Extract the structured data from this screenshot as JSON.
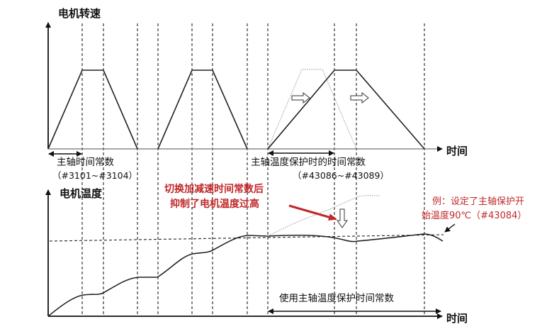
{
  "top_chart": {
    "ylabel": "电机转速",
    "xlabel": "时间",
    "normal_time_label": "主轴时间常数",
    "normal_time_params": "（#3101~#3104）",
    "protect_time_label": "主轴温度保护时的时间常数",
    "protect_time_params": "（#43086~#43089）"
  },
  "bottom_chart": {
    "ylabel": "电机温度",
    "xlabel": "时间",
    "annotation_line1": "切换加减速时间常数后",
    "annotation_line2": "抑制了电机温度过高",
    "threshold_line1": "例：设定了主轴保护开",
    "threshold_line2": "始温度90℃（#43084）",
    "protect_range_label": "使用主轴温度保护时间常数"
  },
  "colors": {
    "annotation": "#c0282a",
    "line": "#222222",
    "original_curve": "#999999"
  }
}
